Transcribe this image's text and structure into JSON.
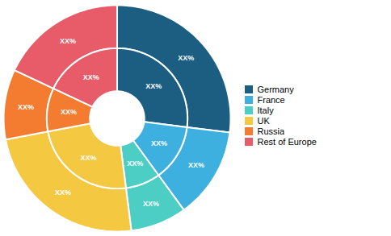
{
  "chart_data": {
    "type": "donut",
    "categories": [
      "Germany",
      "France",
      "Italy",
      "UK",
      "Russia",
      "Rest of Europe"
    ],
    "colors": [
      "#1b5e82",
      "#3db0e0",
      "#4dcec4",
      "#f5c842",
      "#f47c30",
      "#e85c6a"
    ],
    "series": [
      {
        "values": [
          27,
          13,
          8,
          24,
          10,
          18
        ],
        "value_labels": [
          "XX%",
          "XX%",
          "XX%",
          "XX%",
          "XX%",
          "XX%"
        ]
      },
      {
        "values": [
          27,
          13,
          8,
          24,
          10,
          18
        ],
        "value_labels": [
          "XX%",
          "XX%",
          "XX%",
          "XX%",
          "XX%",
          "XX%"
        ]
      }
    ],
    "data_labels": true,
    "legend": "right"
  }
}
